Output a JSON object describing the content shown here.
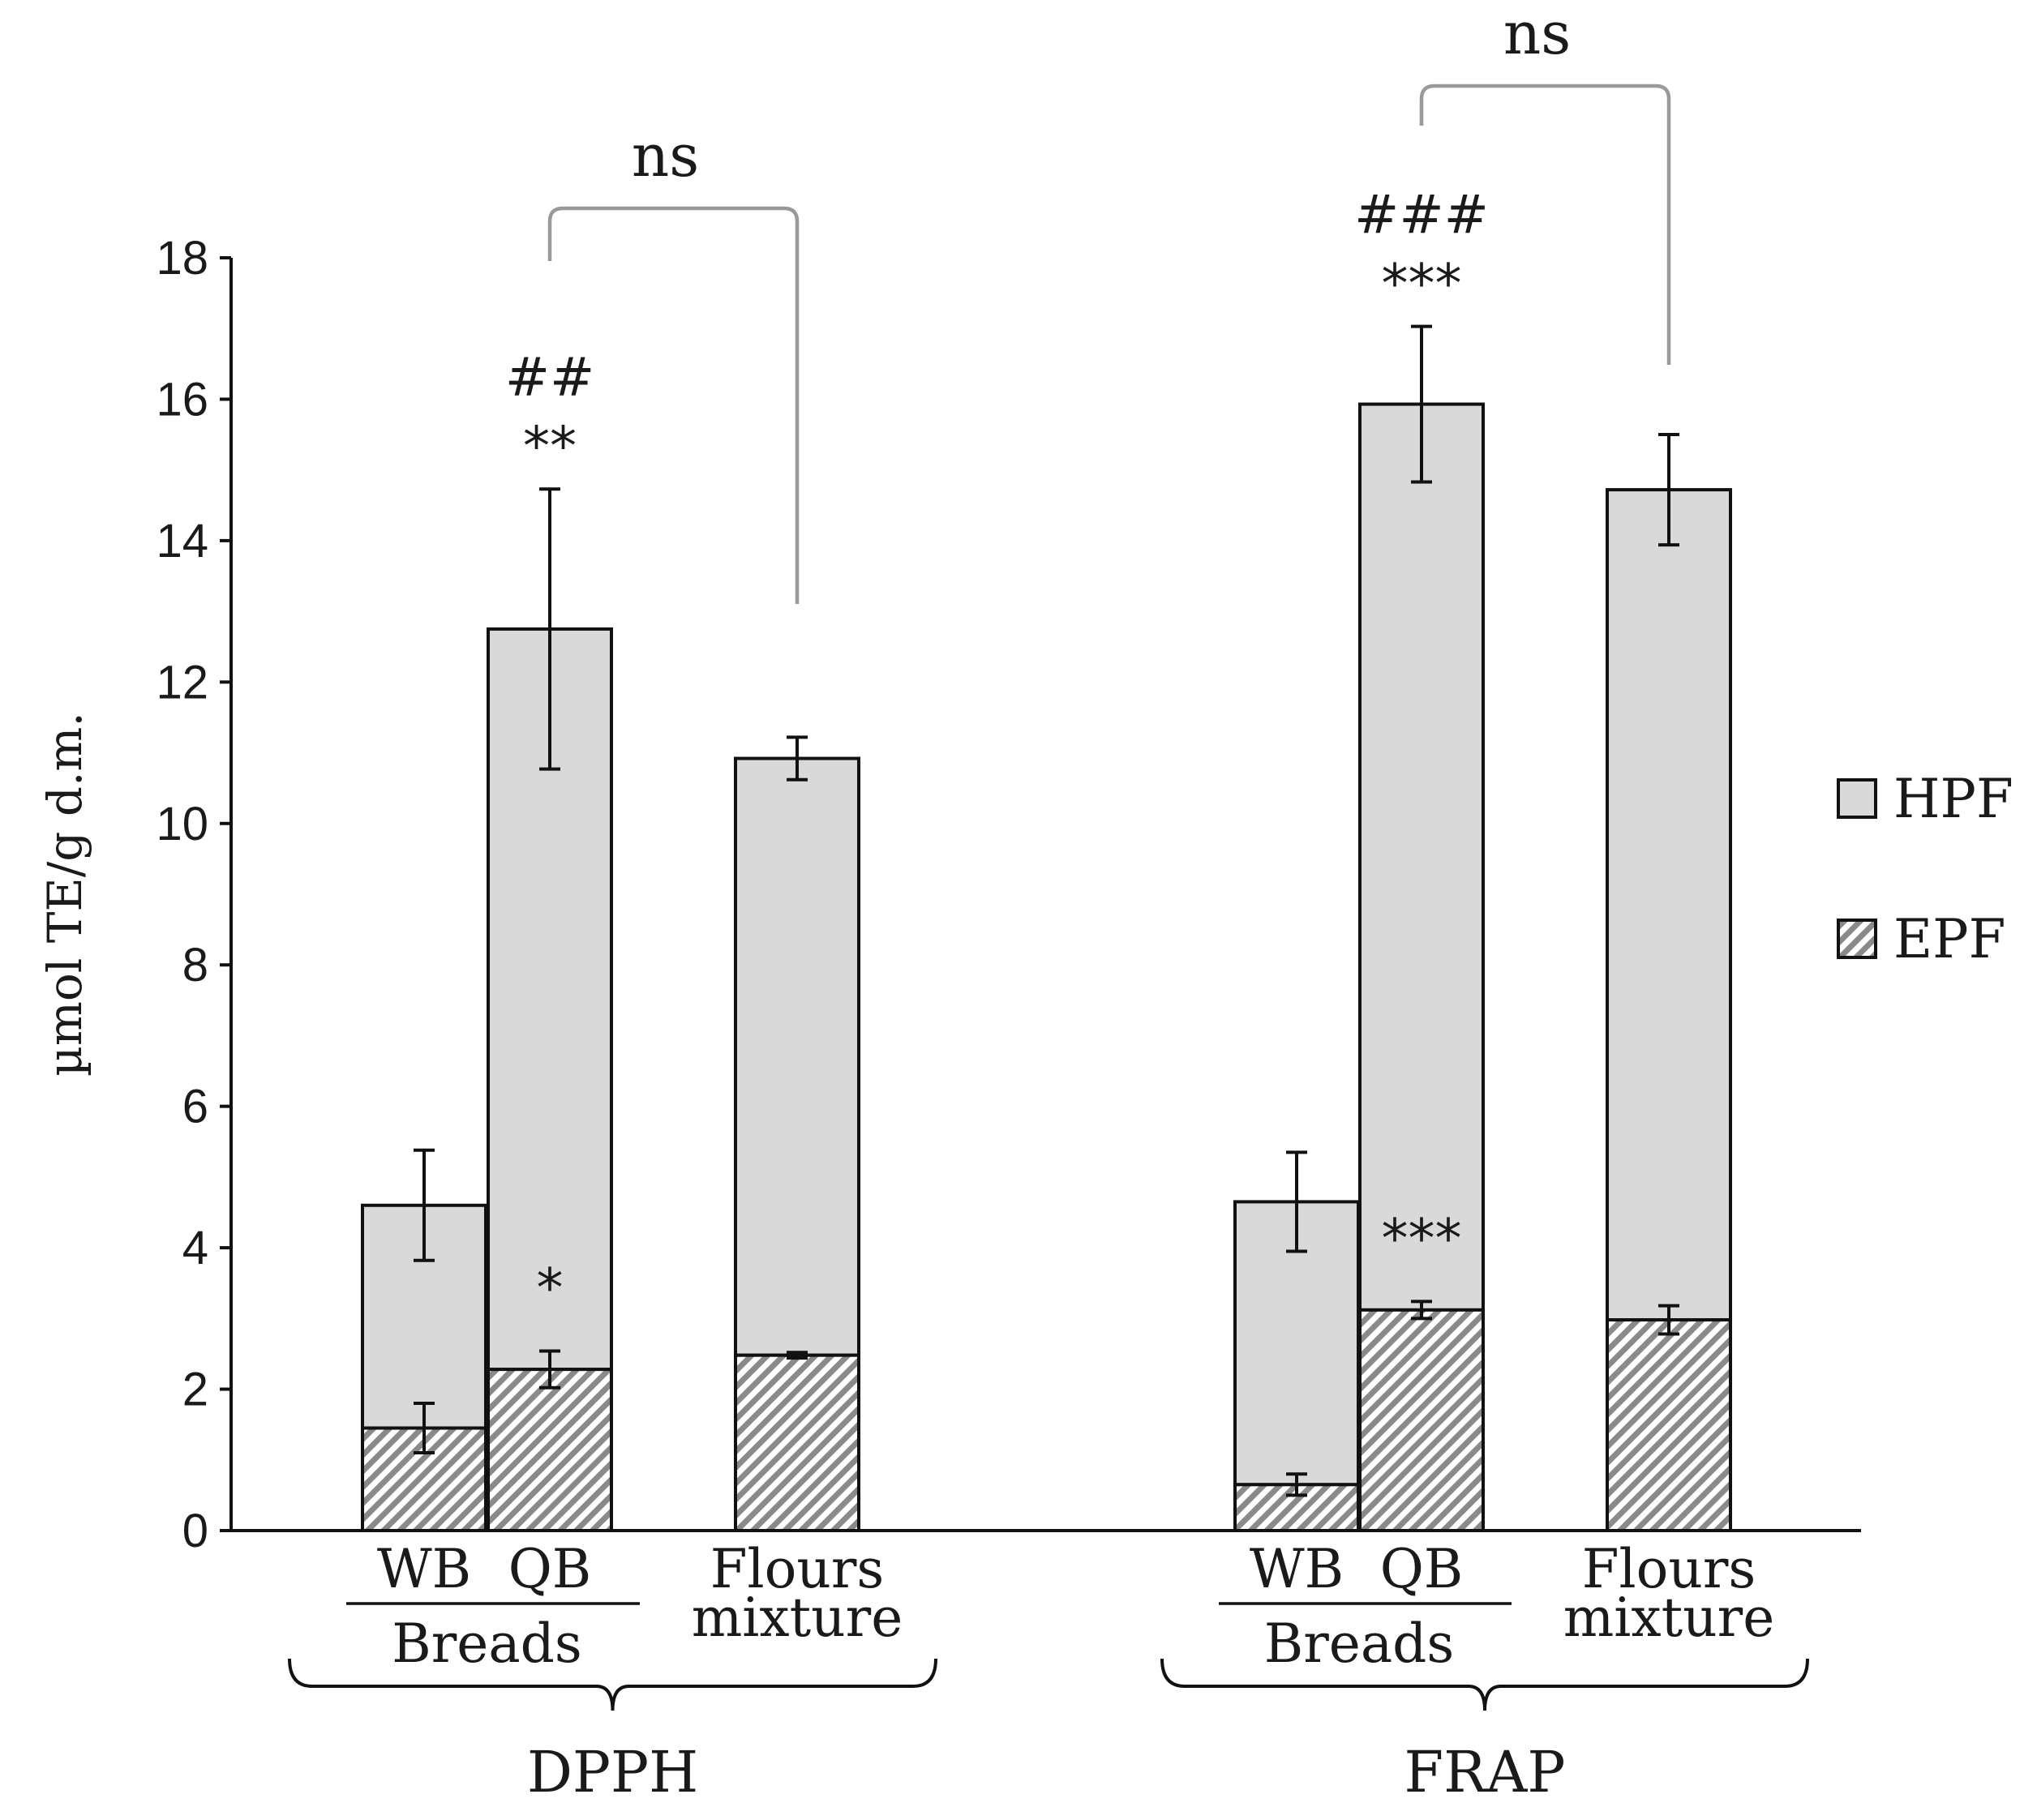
{
  "chart_data": {
    "type": "bar",
    "stacked": true,
    "ylabel": "µmol TE/g d.m.",
    "ylim": [
      0,
      18
    ],
    "yticks": [
      0,
      2,
      4,
      6,
      8,
      10,
      12,
      14,
      16,
      18
    ],
    "legend": [
      {
        "name": "HPF",
        "fill": "solid",
        "color": "#d9d9d9"
      },
      {
        "name": "EPF",
        "fill": "hatched",
        "color": "#d9d9d9"
      }
    ],
    "legend_position": "right",
    "groups": [
      {
        "name": "DPPH",
        "bars": [
          {
            "label": "WB",
            "subgroup": "Breads",
            "EPF": 1.45,
            "EPF_err": 0.35,
            "total": 4.6,
            "total_err": 0.78,
            "epf_annotation": "",
            "total_annotation": []
          },
          {
            "label": "QB",
            "subgroup": "Breads",
            "EPF": 2.28,
            "EPF_err": 0.26,
            "total": 12.75,
            "total_err": 1.98,
            "epf_annotation": "*",
            "total_annotation": [
              "##",
              "**"
            ]
          },
          {
            "label": "Flours mixture",
            "subgroup": "",
            "EPF": 2.48,
            "EPF_err": 0.04,
            "total": 10.92,
            "total_err": 0.3,
            "epf_annotation": "",
            "total_annotation": []
          }
        ],
        "subgroup_label": "Breads",
        "comparison": {
          "label": "ns",
          "from": 1,
          "to": 2
        }
      },
      {
        "name": "FRAP",
        "bars": [
          {
            "label": "WB",
            "subgroup": "Breads",
            "EPF": 0.65,
            "EPF_err": 0.15,
            "total": 4.65,
            "total_err": 0.7,
            "epf_annotation": "",
            "total_annotation": []
          },
          {
            "label": "QB",
            "subgroup": "Breads",
            "EPF": 3.12,
            "EPF_err": 0.12,
            "total": 15.93,
            "total_err": 1.1,
            "epf_annotation": "***",
            "total_annotation": [
              "###",
              "***"
            ]
          },
          {
            "label": "Flours mixture",
            "subgroup": "",
            "EPF": 2.98,
            "EPF_err": 0.2,
            "total": 14.72,
            "total_err": 0.78,
            "epf_annotation": "",
            "total_annotation": []
          }
        ],
        "subgroup_label": "Breads",
        "comparison": {
          "label": "ns",
          "from": 1,
          "to": 2
        }
      }
    ]
  },
  "colors": {
    "bar_fill": "#d9d9d9",
    "hatch": "#7a7a7a",
    "stroke": "#111111",
    "bracket": "#999999"
  }
}
